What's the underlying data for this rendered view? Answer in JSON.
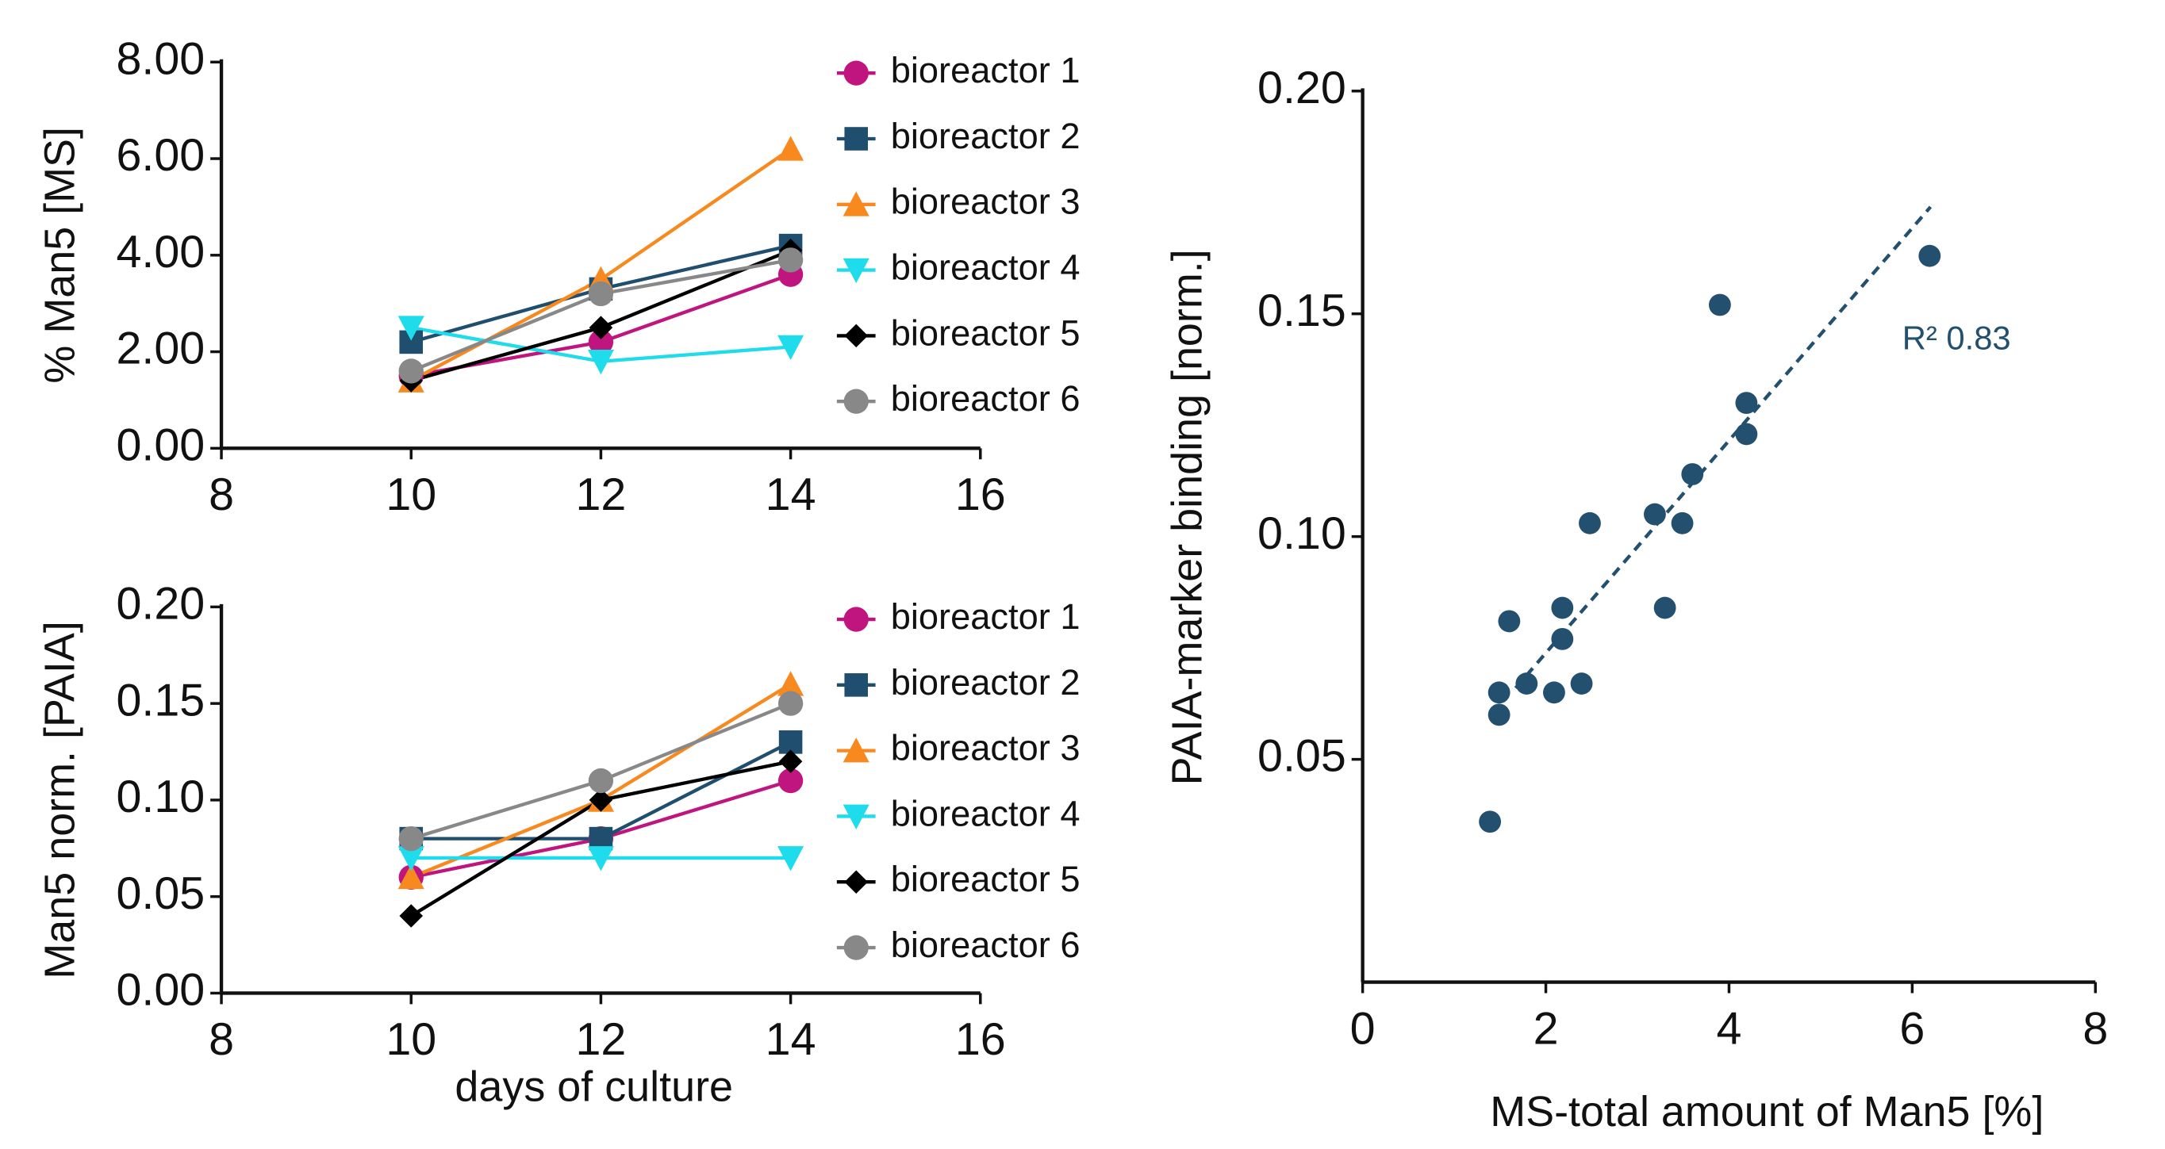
{
  "chart_data": [
    {
      "type": "line",
      "ylabel": "% Man5 [MS]",
      "x": [
        10,
        12,
        14
      ],
      "xlim": [
        8,
        16
      ],
      "xticks": [
        8,
        10,
        12,
        14,
        16
      ],
      "ylim": [
        0,
        8
      ],
      "yticks": [
        {
          "value": 0,
          "label": "0.00"
        },
        {
          "value": 2,
          "label": "2.00"
        },
        {
          "value": 4,
          "label": "4.00"
        },
        {
          "value": 6,
          "label": "6.00"
        },
        {
          "value": 8,
          "label": "8.00"
        }
      ],
      "series": [
        {
          "name": "bioreactor 1",
          "color": "#c0157f",
          "marker": "circle",
          "values": [
            1.5,
            2.2,
            3.6
          ]
        },
        {
          "name": "bioreactor 2",
          "color": "#1f4e6e",
          "marker": "square",
          "values": [
            2.2,
            3.3,
            4.2
          ]
        },
        {
          "name": "bioreactor 3",
          "color": "#f7891f",
          "marker": "triangle-up",
          "values": [
            1.4,
            3.5,
            6.2
          ]
        },
        {
          "name": "bioreactor 4",
          "color": "#1fdcec",
          "marker": "triangle-down",
          "values": [
            2.5,
            1.8,
            2.1
          ]
        },
        {
          "name": "bioreactor 5",
          "color": "#000000",
          "marker": "diamond",
          "values": [
            1.4,
            2.5,
            4.1
          ]
        },
        {
          "name": "bioreactor 6",
          "color": "#888888",
          "marker": "circle",
          "values": [
            1.6,
            3.2,
            3.9
          ]
        }
      ]
    },
    {
      "type": "line",
      "ylabel": "Man5 norm. [PAIA]",
      "xlabel": "days of culture",
      "x": [
        10,
        12,
        14
      ],
      "xlim": [
        8,
        16
      ],
      "xticks": [
        8,
        10,
        12,
        14,
        16
      ],
      "ylim": [
        0,
        0.2
      ],
      "yticks": [
        {
          "value": 0,
          "label": "0.00"
        },
        0.05,
        {
          "value": 0.1,
          "label": "0.10"
        },
        0.15,
        {
          "value": 0.2,
          "label": "0.20"
        }
      ],
      "series": [
        {
          "name": "bioreactor 1",
          "color": "#c0157f",
          "marker": "circle",
          "values": [
            0.06,
            0.08,
            0.11
          ]
        },
        {
          "name": "bioreactor 2",
          "color": "#1f4e6e",
          "marker": "square",
          "values": [
            0.08,
            0.08,
            0.13
          ]
        },
        {
          "name": "bioreactor 3",
          "color": "#f7891f",
          "marker": "triangle-up",
          "values": [
            0.06,
            0.1,
            0.16
          ]
        },
        {
          "name": "bioreactor 4",
          "color": "#1fdcec",
          "marker": "triangle-down",
          "values": [
            0.07,
            0.07,
            0.07
          ]
        },
        {
          "name": "bioreactor 5",
          "color": "#000000",
          "marker": "diamond",
          "values": [
            0.04,
            0.1,
            0.12
          ]
        },
        {
          "name": "bioreactor 6",
          "color": "#888888",
          "marker": "circle",
          "values": [
            0.08,
            0.11,
            0.15
          ]
        }
      ]
    },
    {
      "type": "scatter",
      "xlabel": "MS-total amount of Man5 [%]",
      "ylabel": "PAIA-marker binding [norm.]",
      "xlim": [
        0,
        8
      ],
      "xticks": [
        0,
        2,
        4,
        6,
        8
      ],
      "ylim": [
        0,
        0.2
      ],
      "yticks": [
        0.05,
        {
          "value": 0.1,
          "label": "0.10"
        },
        0.15,
        {
          "value": 0.2,
          "label": "0.20"
        }
      ],
      "color": "#23506f",
      "x": [
        1.39,
        1.49,
        1.49,
        1.6,
        1.79,
        2.09,
        2.18,
        2.18,
        2.39,
        2.48,
        3.19,
        3.3,
        3.49,
        3.6,
        3.9,
        4.19,
        4.19,
        6.19
      ],
      "y": [
        0.036,
        0.06,
        0.065,
        0.081,
        0.067,
        0.065,
        0.084,
        0.077,
        0.067,
        0.103,
        0.105,
        0.084,
        0.103,
        0.114,
        0.152,
        0.123,
        0.13,
        0.163
      ],
      "trendline": {
        "x": [
          1.67,
          6.2
        ],
        "y": [
          0.066,
          0.174
        ]
      },
      "annotation": "R² 0.83"
    }
  ]
}
